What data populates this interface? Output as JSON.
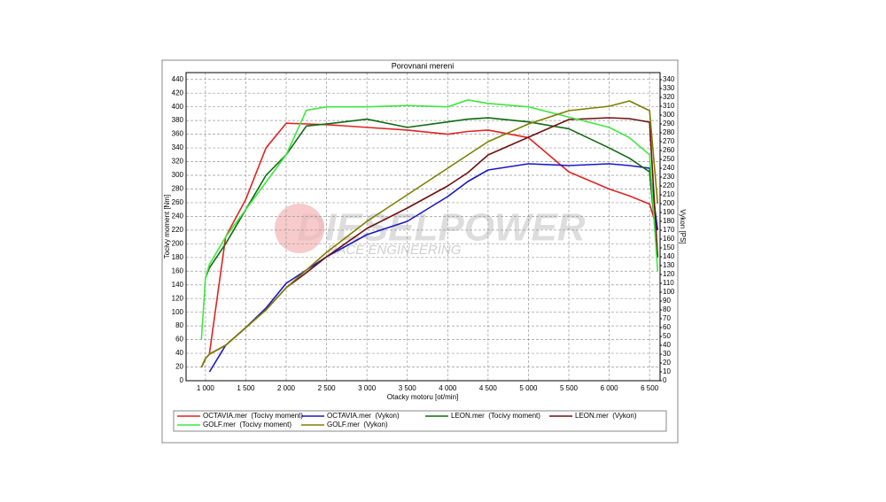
{
  "chart_data": {
    "type": "line",
    "title": "Porovnani mereni",
    "xlabel": "Otacky motoru [ot/min]",
    "ylabel": "Tocivy moment [Nm]",
    "y2label": "Vykon [PS]",
    "watermark": "DIESELPOWER",
    "watermark_sub": "RACE ENGINEERING",
    "grid": true,
    "xlim": [
      760,
      6630
    ],
    "ylim": [
      0,
      450
    ],
    "y2lim": [
      0,
      348
    ],
    "xticks": [
      {
        "value": 1000,
        "label": "1 000"
      },
      {
        "value": 1500,
        "label": "1 500"
      },
      {
        "value": 2000,
        "label": "2 000"
      },
      {
        "value": 2500,
        "label": "2 500"
      },
      {
        "value": 3000,
        "label": "3 000"
      },
      {
        "value": 3500,
        "label": "3 500"
      },
      {
        "value": 4000,
        "label": "4 000"
      },
      {
        "value": 4500,
        "label": "4 500"
      },
      {
        "value": 5000,
        "label": "5 000"
      },
      {
        "value": 5500,
        "label": "5 500"
      },
      {
        "value": 6000,
        "label": "6 000"
      },
      {
        "value": 6500,
        "label": "6 500"
      }
    ],
    "yticks": [
      0,
      20,
      40,
      60,
      80,
      100,
      120,
      140,
      160,
      180,
      200,
      220,
      240,
      260,
      280,
      300,
      320,
      340,
      360,
      380,
      400,
      420,
      440
    ],
    "y2ticks": [
      0,
      10,
      20,
      30,
      40,
      50,
      60,
      70,
      80,
      90,
      100,
      110,
      120,
      130,
      140,
      150,
      160,
      170,
      180,
      190,
      200,
      210,
      220,
      230,
      240,
      250,
      260,
      270,
      280,
      290,
      300,
      310,
      320,
      330,
      340
    ],
    "x": [
      950,
      1000,
      1050,
      1250,
      1500,
      1750,
      2000,
      2250,
      2500,
      3000,
      3500,
      4000,
      4250,
      4500,
      5000,
      5500,
      6000,
      6250,
      6500,
      6600
    ],
    "series": [
      {
        "name": "OCTAVIA.mer  (Tocivy moment)",
        "color": "#e02424",
        "values": [
          null,
          null,
          40,
          210,
          265,
          340,
          376,
          375,
          374,
          370,
          366,
          360,
          364,
          366,
          355,
          305,
          280,
          270,
          258,
          220
        ]
      },
      {
        "name": "OCTAVIA.mer  (Vykon)",
        "color": "#1818c0",
        "axis": "y2",
        "values": [
          null,
          null,
          10,
          40,
          60,
          82,
          110,
          125,
          140,
          165,
          180,
          208,
          225,
          238,
          245,
          243,
          245,
          243,
          240,
          170
        ]
      },
      {
        "name": "LEON.mer  (Tocivy moment)",
        "color": "#106a10",
        "values": [
          null,
          150,
          165,
          200,
          250,
          300,
          330,
          372,
          375,
          382,
          370,
          378,
          382,
          384,
          378,
          368,
          340,
          325,
          305,
          180
        ]
      },
      {
        "name": "LEON.mer  (Vykon)",
        "color": "#6e1010",
        "axis": "y2",
        "values": [
          15,
          25,
          30,
          40,
          60,
          80,
          105,
          122,
          140,
          172,
          195,
          220,
          235,
          255,
          275,
          295,
          297,
          296,
          292,
          140
        ]
      },
      {
        "name": "GOLF.mer  (Tocivy moment)",
        "color": "#3ee83e",
        "values": [
          60,
          150,
          170,
          210,
          250,
          290,
          330,
          395,
          400,
          400,
          402,
          400,
          410,
          405,
          400,
          385,
          370,
          355,
          330,
          160
        ]
      },
      {
        "name": "GOLF.mer  (Vykon)",
        "color": "#7e7e00",
        "axis": "y2",
        "values": [
          15,
          25,
          30,
          40,
          60,
          80,
          105,
          125,
          145,
          180,
          210,
          240,
          255,
          270,
          290,
          305,
          310,
          316,
          305,
          200
        ]
      }
    ]
  }
}
